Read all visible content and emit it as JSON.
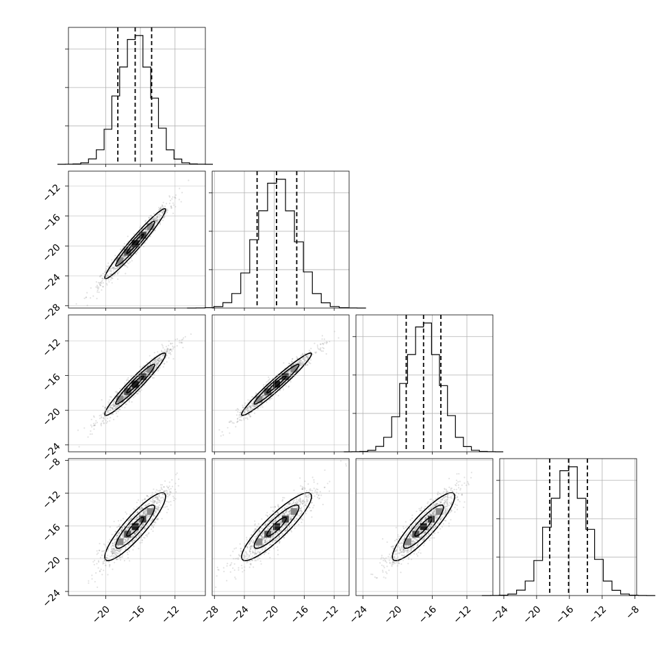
{
  "chart_data": {
    "type": "scatter",
    "kind": "corner-plot",
    "title": "",
    "n_params": 4,
    "grid": true,
    "quantiles": [
      0.16,
      0.5,
      0.84
    ],
    "histogram_bins": 20,
    "params": [
      {
        "index": 0,
        "range": [
          -24.3,
          -8.5
        ],
        "median": -16.6,
        "q16": -18.6,
        "q84": -14.7,
        "std": 1.95,
        "xticks": [
          "−20",
          "−16",
          "−12"
        ],
        "yticks": []
      },
      {
        "index": 1,
        "range": [
          -28.3,
          -10.0
        ],
        "median": -19.7,
        "q16": -22.3,
        "q84": -17.0,
        "std": 2.6,
        "xticks": [
          "−28",
          "−24",
          "−20",
          "−16",
          "−12"
        ],
        "yticks": [
          "−12",
          "−16",
          "−20",
          "−24",
          "−28"
        ]
      },
      {
        "index": 2,
        "range": [
          -24.8,
          -9.0
        ],
        "median": -17.0,
        "q16": -19.0,
        "q84": -15.0,
        "std": 2.0,
        "xticks": [
          "−24",
          "−20",
          "−16",
          "−12"
        ],
        "yticks": [
          "−12",
          "−16",
          "−20",
          "−24"
        ]
      },
      {
        "index": 3,
        "range": [
          -24.5,
          -7.8
        ],
        "median": -16.1,
        "q16": -18.4,
        "q84": -13.8,
        "std": 2.3,
        "xticks": [
          "−24",
          "−20",
          "−16",
          "−12",
          "−8"
        ],
        "yticks": [
          "−8",
          "−12",
          "−16",
          "−20",
          "−24"
        ]
      }
    ],
    "correlations": {
      "1-0": 0.97,
      "2-0": 0.96,
      "2-1": 0.97,
      "3-0": 0.89,
      "3-1": 0.89,
      "3-2": 0.89
    },
    "ytick_values": {
      "1": [
        -12,
        -16,
        -20,
        -24,
        -28
      ],
      "2": [
        -12,
        -16,
        -20,
        -24
      ],
      "3": [
        -8,
        -12,
        -16,
        -20,
        -24
      ]
    },
    "xtick_values": {
      "0": [
        -20,
        -16,
        -12
      ],
      "1": [
        -28,
        -24,
        -20,
        -16,
        -12
      ],
      "2": [
        -24,
        -20,
        -16,
        -12
      ],
      "3": [
        -24,
        -20,
        -16,
        -12,
        -8
      ]
    }
  }
}
